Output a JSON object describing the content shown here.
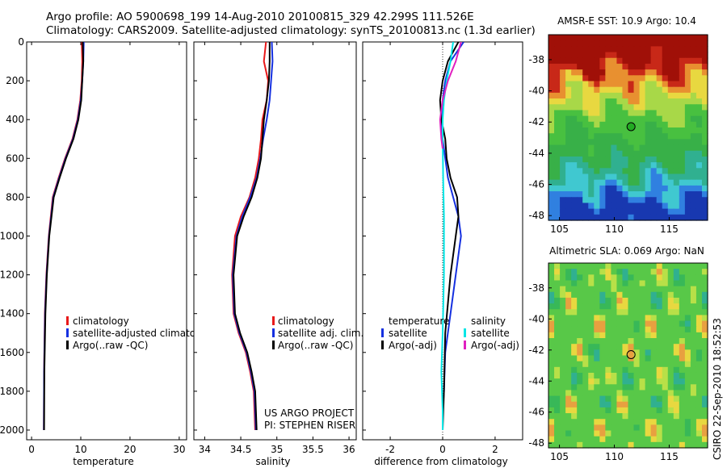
{
  "header": {
    "line1": "Argo profile: AO 5900698_199 14-Aug-2010 20100815_329 42.299S 111.526E",
    "line2": "Climatology: CARS2009. Satellite-adjusted climatology: synTS_20100813.nc (1.3d earlier)"
  },
  "colors": {
    "climatology": "#e8191a",
    "satellite": "#1530e0",
    "argo": "#000000",
    "satellite_sal": "#00e5e5",
    "argo_sal_adj": "#e020c0"
  },
  "chart_data": [
    {
      "type": "line",
      "id": "temperature",
      "xlabel": "temperature",
      "ylabel": "",
      "xlim": [
        -1,
        31.5
      ],
      "ylim": [
        2050,
        0
      ],
      "xticks": [
        0,
        10,
        20,
        30
      ],
      "xtick_labels": [
        "0",
        "10",
        "20",
        "30"
      ],
      "yticks": [
        0,
        200,
        400,
        600,
        800,
        1000,
        1200,
        1400,
        1600,
        1800,
        2000
      ],
      "ytick_labels": [
        "0",
        "200",
        "400",
        "600",
        "800",
        "1000",
        "1200",
        "1400",
        "1600",
        "1800",
        "2000"
      ],
      "legend": [
        "climatology",
        "satellite-adjusted climatology",
        "Argo(..raw -QC)"
      ],
      "series": [
        {
          "name": "climatology",
          "color_key": "climatology",
          "x": [
            10.2,
            10.3,
            10.2,
            9.9,
            9.3,
            8.3,
            6.8,
            5.5,
            4.3,
            3.5,
            3.0,
            2.7,
            2.55,
            2.5
          ],
          "depth": [
            0,
            100,
            200,
            300,
            400,
            500,
            600,
            700,
            800,
            1000,
            1200,
            1400,
            1700,
            2000
          ]
        },
        {
          "name": "satellite-adjusted climatology",
          "color_key": "satellite",
          "x": [
            10.6,
            10.5,
            10.3,
            10.0,
            9.4,
            8.4,
            6.9,
            5.6,
            4.4,
            3.55,
            3.05,
            2.75,
            2.55,
            2.5
          ],
          "depth": [
            0,
            100,
            200,
            300,
            400,
            500,
            600,
            700,
            800,
            1000,
            1200,
            1400,
            1700,
            2000
          ]
        },
        {
          "name": "Argo(..raw -QC)",
          "color_key": "argo",
          "x": [
            10.4,
            10.5,
            10.3,
            10.1,
            9.5,
            8.5,
            7.0,
            5.7,
            4.5,
            3.6,
            3.1,
            2.8,
            2.6,
            2.55
          ],
          "depth": [
            0,
            100,
            200,
            300,
            400,
            500,
            600,
            700,
            800,
            1000,
            1200,
            1400,
            1700,
            2000
          ]
        }
      ]
    },
    {
      "type": "line",
      "id": "salinity",
      "xlabel": "salinity",
      "xlim": [
        33.85,
        36.1
      ],
      "ylim": [
        2050,
        0
      ],
      "xticks": [
        34,
        34.5,
        35,
        35.5,
        36
      ],
      "xtick_labels": [
        "34",
        "34.5",
        "35",
        "35.5",
        "36"
      ],
      "legend": [
        "climatology",
        "satellite adj. clim.",
        "Argo(..raw -QC)"
      ],
      "annotation": [
        "US ARGO PROJECT",
        "PI: STEPHEN RISER"
      ],
      "series": [
        {
          "name": "climatology",
          "color_key": "climatology",
          "x": [
            34.85,
            34.82,
            34.88,
            34.86,
            34.8,
            34.78,
            34.75,
            34.7,
            34.62,
            34.5,
            34.42,
            34.38,
            34.4,
            34.47,
            34.57,
            34.63,
            34.68,
            34.7
          ],
          "depth": [
            0,
            100,
            200,
            300,
            400,
            500,
            600,
            700,
            800,
            900,
            1000,
            1200,
            1400,
            1500,
            1600,
            1700,
            1800,
            2000
          ]
        },
        {
          "name": "satellite adj. clim.",
          "color_key": "satellite",
          "x": [
            34.93,
            34.94,
            34.92,
            34.9,
            34.86,
            34.81,
            34.77,
            34.72,
            34.63,
            34.52,
            34.44,
            34.39,
            34.41,
            34.48,
            34.58,
            34.64,
            34.69,
            34.71
          ],
          "depth": [
            0,
            100,
            200,
            300,
            400,
            500,
            600,
            700,
            800,
            900,
            1000,
            1200,
            1400,
            1500,
            1600,
            1700,
            1800,
            2000
          ]
        },
        {
          "name": "Argo(..raw -QC)",
          "color_key": "argo",
          "x": [
            34.9,
            34.9,
            34.89,
            34.86,
            34.82,
            34.8,
            34.78,
            34.73,
            34.65,
            34.54,
            34.45,
            34.4,
            34.42,
            34.49,
            34.59,
            34.65,
            34.7,
            34.72
          ],
          "depth": [
            0,
            100,
            200,
            300,
            400,
            500,
            600,
            700,
            800,
            900,
            1000,
            1200,
            1400,
            1500,
            1600,
            1700,
            1800,
            2000
          ]
        }
      ]
    },
    {
      "type": "line",
      "id": "difference",
      "xlabel": "difference from climatology",
      "xlim": [
        -3.05,
        3.05
      ],
      "ylim": [
        2050,
        0
      ],
      "xticks": [
        -2,
        0,
        2
      ],
      "xtick_labels": [
        "-2",
        "0",
        "2"
      ],
      "legend_headers": [
        "temperature",
        "salinity"
      ],
      "legend_temperature": [
        "satellite",
        "Argo(-adj)"
      ],
      "legend_salinity": [
        "satellite",
        "Argo(-adj)"
      ],
      "series": [
        {
          "name": "temperature satellite",
          "color_key": "satellite",
          "x": [
            0.8,
            0.3,
            0.1,
            0.0,
            -0.05,
            0.0,
            0.1,
            0.2,
            0.4,
            0.6,
            0.7,
            0.5,
            0.3,
            0.1,
            0.05,
            0.0,
            0.0
          ],
          "depth": [
            0,
            100,
            200,
            300,
            400,
            500,
            600,
            700,
            800,
            900,
            1000,
            1200,
            1400,
            1600,
            1800,
            1900,
            2000
          ]
        },
        {
          "name": "temperature Argo(-adj)",
          "color_key": "argo",
          "x": [
            0.6,
            0.2,
            0.0,
            -0.1,
            -0.05,
            0.1,
            0.15,
            0.3,
            0.55,
            0.6,
            0.5,
            0.3,
            0.1,
            0.05,
            0.0
          ],
          "depth": [
            0,
            100,
            200,
            300,
            400,
            500,
            600,
            700,
            800,
            900,
            1000,
            1200,
            1500,
            1800,
            2000
          ]
        },
        {
          "name": "salinity satellite",
          "color_key": "satellite_sal",
          "x": [
            0.4,
            0.3,
            0.15,
            0.05,
            0.0,
            0.0,
            0.02,
            0.05,
            0.05,
            0.0,
            -0.05,
            0.0,
            0.0
          ],
          "depth": [
            0,
            100,
            200,
            300,
            400,
            500,
            700,
            900,
            1200,
            1500,
            1700,
            1900,
            2000
          ]
        },
        {
          "name": "salinity Argo(-adj)",
          "color_key": "argo_sal_adj",
          "x": [
            0.7,
            0.5,
            0.2,
            0.0,
            -0.1,
            -0.05,
            0.0
          ],
          "depth": [
            0,
            100,
            200,
            300,
            400,
            500,
            550
          ]
        }
      ]
    },
    {
      "type": "heatmap",
      "id": "sst_map",
      "title": "AMSR-E SST: 10.9 Argo: 10.4",
      "xlim": [
        104,
        118.5
      ],
      "ylim": [
        -48.3,
        -36.4
      ],
      "xticks": [
        105,
        110,
        115
      ],
      "xtick_labels": [
        "105",
        "110",
        "115"
      ],
      "yticks": [
        -38,
        -40,
        -42,
        -44,
        -46,
        -48
      ],
      "ytick_labels": [
        "-38",
        "-40",
        "-42",
        "-44",
        "-46",
        "-48"
      ],
      "marker": {
        "lon": 111.526,
        "lat": -42.299
      }
    },
    {
      "type": "heatmap",
      "id": "sla_map",
      "title": "Altimetric SLA: 0.069 Argo: NaN",
      "xlim": [
        104,
        118.5
      ],
      "ylim": [
        -48.3,
        -36.4
      ],
      "xticks": [
        105,
        110,
        115
      ],
      "xtick_labels": [
        "105",
        "110",
        "115"
      ],
      "yticks": [
        -38,
        -40,
        -42,
        -44,
        -46,
        -48
      ],
      "ytick_labels": [
        "-38",
        "-40",
        "-42",
        "-44",
        "-46",
        "-48"
      ],
      "marker": {
        "lon": 111.526,
        "lat": -42.299
      }
    }
  ],
  "stamp": "CSIRO 22-Sep-2010 18:52:53"
}
